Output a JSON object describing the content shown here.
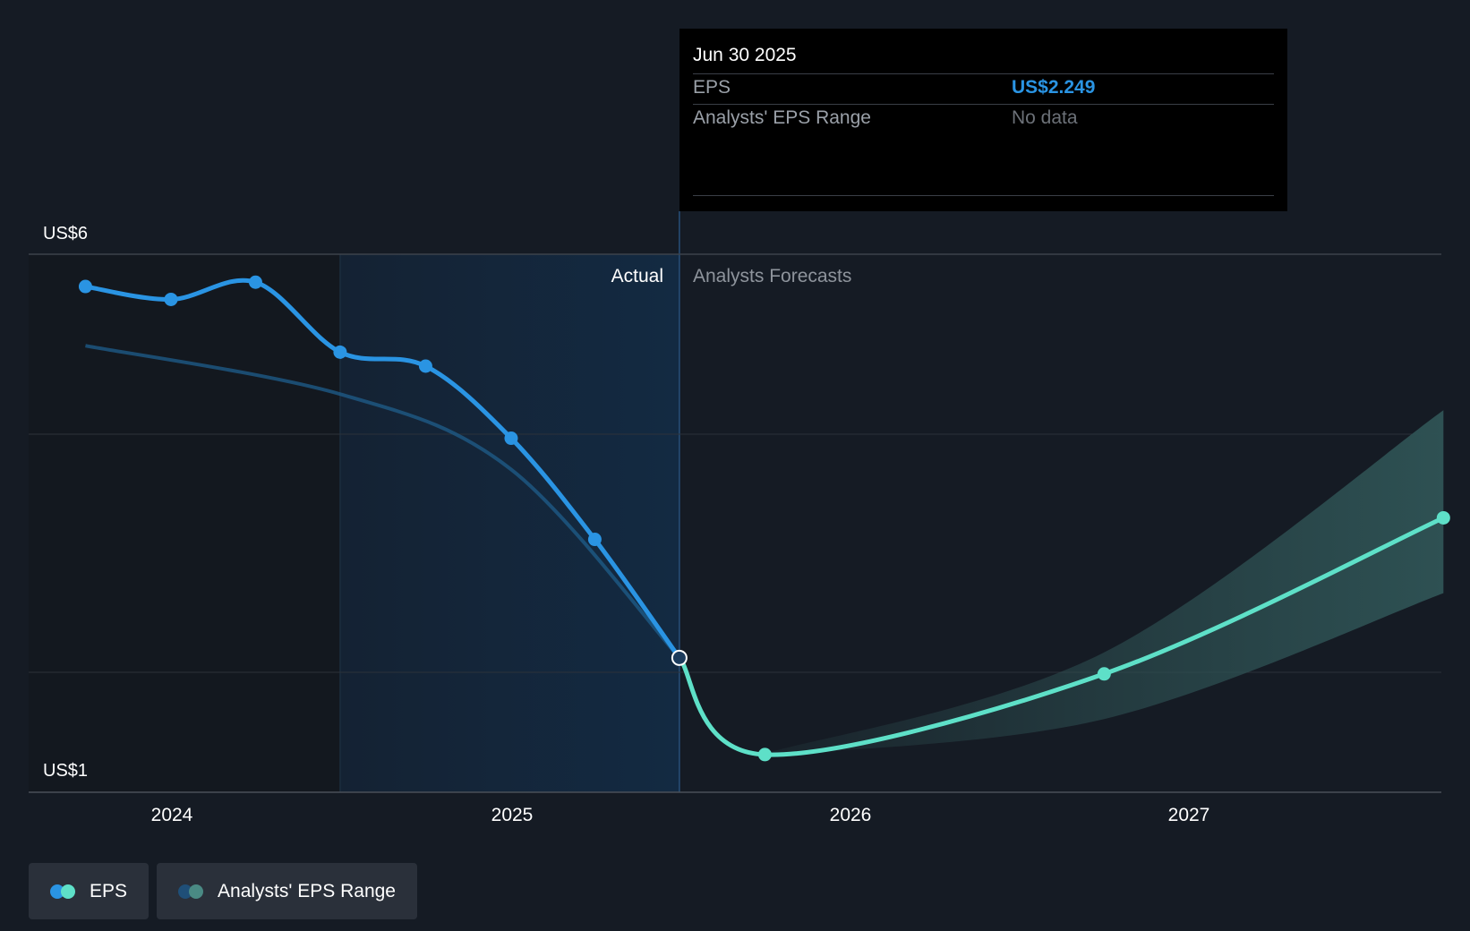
{
  "chart_data": {
    "type": "line",
    "x_ticks": [
      "2024",
      "2025",
      "2026",
      "2027"
    ],
    "y_labels": [
      "US$6",
      "US$1"
    ],
    "ylim": [
      1,
      6
    ],
    "region_labels": {
      "actual": "Actual",
      "forecast": "Analysts Forecasts"
    },
    "grid": "horizontal",
    "legend_position": "bottom-left",
    "colors": {
      "eps_actual": "#2a94e3",
      "eps_forecast": "#5ee0c8",
      "range_band": "#2e5153",
      "actual_shade": "#132a42",
      "trend": "#1e5a86"
    },
    "series": [
      {
        "name": "EPS",
        "points": [
          {
            "x": "2023-09-30",
            "y": 5.7
          },
          {
            "x": "2023-12-31",
            "y": 5.58
          },
          {
            "x": "2024-03-31",
            "y": 5.74
          },
          {
            "x": "2024-06-30",
            "y": 5.09
          },
          {
            "x": "2024-09-30",
            "y": 4.96
          },
          {
            "x": "2024-12-31",
            "y": 4.29
          },
          {
            "x": "2025-03-31",
            "y": 3.35
          },
          {
            "x": "2025-06-30",
            "y": 2.249
          }
        ]
      },
      {
        "name": "EPS",
        "forecast": true,
        "points": [
          {
            "x": "2025-06-30",
            "y": 2.249
          },
          {
            "x": "2025-09-30",
            "y": 1.35
          },
          {
            "x": "2026-09-30",
            "y": 2.1
          },
          {
            "x": "2027-09-30",
            "y": 3.55
          }
        ]
      },
      {
        "name": "Analysts' EPS Range",
        "upper": [
          {
            "x": "2025-09-30",
            "y": 1.36
          },
          {
            "x": "2026-09-30",
            "y": 2.3
          },
          {
            "x": "2027-09-30",
            "y": 4.55
          }
        ],
        "lower": [
          {
            "x": "2025-09-30",
            "y": 1.34
          },
          {
            "x": "2026-09-30",
            "y": 1.68
          },
          {
            "x": "2027-09-30",
            "y": 2.85
          }
        ]
      }
    ],
    "trend_points": [
      {
        "x": "2023-09-30",
        "y": 5.15
      },
      {
        "x": "2024-06-30",
        "y": 4.7
      },
      {
        "x": "2024-12-31",
        "y": 4.0
      },
      {
        "x": "2025-06-30",
        "y": 2.249
      }
    ]
  },
  "tooltip": {
    "date": "Jun 30 2025",
    "eps_label": "EPS",
    "eps_value": "US$2.249",
    "range_label": "Analysts' EPS Range",
    "range_value": "No data"
  },
  "legend": {
    "eps": "EPS",
    "range": "Analysts' EPS Range"
  }
}
